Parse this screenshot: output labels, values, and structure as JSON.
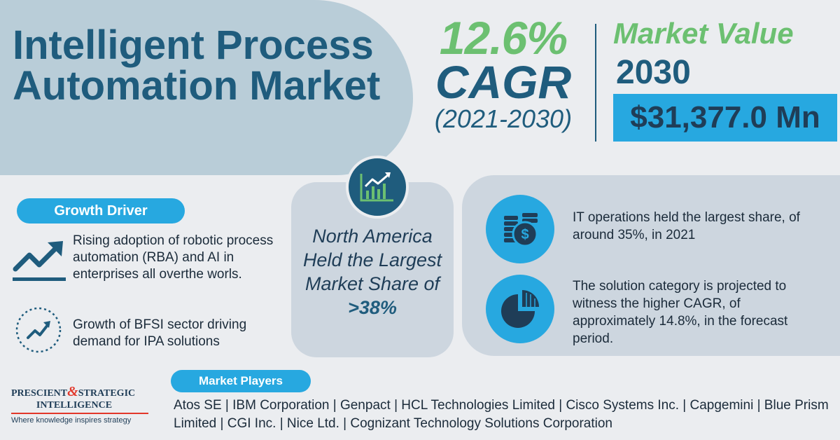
{
  "title": "Intelligent Process Automation Market",
  "cagr": {
    "value": "12.6%",
    "label": "CAGR",
    "period": "(2021-2030)"
  },
  "market_value": {
    "label": "Market Value",
    "year": "2030",
    "amount": "$31,377.0 Mn"
  },
  "growth_driver": {
    "heading": "Growth Driver",
    "items": [
      {
        "text": "Rising adoption of robotic process automation (RBA) and AI in enterprises all overthe worls.",
        "icon": "trend-up-arrow-icon"
      },
      {
        "text": "Growth of BFSI sector driving demand for IPA solutions",
        "icon": "growth-chart-circle-icon"
      }
    ]
  },
  "region": {
    "icon": "bar-chart-icon",
    "text": "North America Held the Largest Market Share of",
    "value": ">38%"
  },
  "segments": [
    {
      "icon": "coins-dollar-icon",
      "text": "IT operations held the largest share, of around 35%, in 2021"
    },
    {
      "icon": "pie-chart-icon",
      "text": "The solution category is projected to witness the higher CAGR, of approximately 14.8%, in the forecast period."
    }
  ],
  "players": {
    "heading": "Market Players",
    "list": "Atos SE | IBM Corporation | Genpact | HCL Technologies Limited | Cisco Systems Inc. | Capgemini | Blue Prism Limited | CGI Inc. | Nice Ltd. | Cognizant Technology Solutions Corporation"
  },
  "logo": {
    "part1": "PRESCIENT",
    "amp": "&",
    "part2": "STRATEGIC",
    "line2": "INTELLIGENCE",
    "tagline": "Where knowledge inspires strategy"
  },
  "colors": {
    "navy": "#1f5c7d",
    "green": "#6cc071",
    "blue": "#27a8e0",
    "red": "#e2372a"
  }
}
